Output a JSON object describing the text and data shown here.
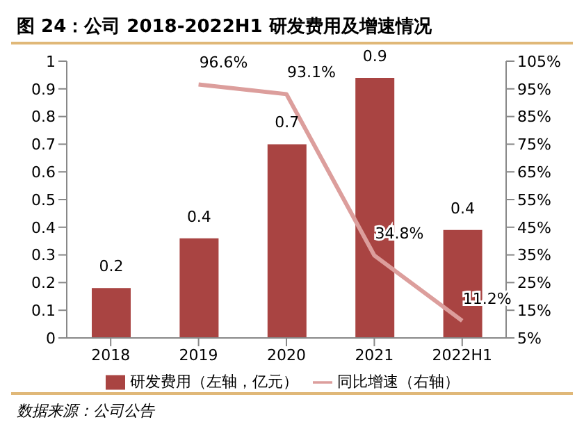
{
  "chart_data": {
    "type": "bar",
    "title": "图 24：公司 2018-2022H1 研发费用及增速情况",
    "categories": [
      "2018",
      "2019",
      "2020",
      "2021",
      "2022H1"
    ],
    "series": [
      {
        "name": "研发费用（左轴，亿元）",
        "color": "#a94442",
        "values": [
          0.18,
          0.36,
          0.7,
          0.94,
          0.39
        ],
        "value_labels": [
          "0.2",
          "0.4",
          "0.7",
          "0.9",
          "0.4"
        ]
      },
      {
        "name": "同比增速（右轴）",
        "type": "line",
        "axis": "y2",
        "color": "#dc9e9c",
        "values": [
          null,
          96.6,
          93.1,
          34.8,
          11.2
        ],
        "value_labels": [
          null,
          "96.6%",
          "93.1%",
          "34.8%",
          "11.2%"
        ]
      }
    ],
    "ylim": [
      0,
      1
    ],
    "yticks": [
      0,
      0.1,
      0.2,
      0.3,
      0.4,
      0.5,
      0.6,
      0.7,
      0.8,
      0.9,
      1
    ],
    "y2lim": [
      5,
      105
    ],
    "y2ticks": [
      {
        "value": 5,
        "label": "5%"
      },
      {
        "value": 15,
        "label": "15%"
      },
      {
        "value": 25,
        "label": "25%"
      },
      {
        "value": 35,
        "label": "35%"
      },
      {
        "value": 45,
        "label": "45%"
      },
      {
        "value": 55,
        "label": "55%"
      },
      {
        "value": 65,
        "label": "65%"
      },
      {
        "value": 75,
        "label": "75%"
      },
      {
        "value": 85,
        "label": "85%"
      },
      {
        "value": 95,
        "label": "95%"
      },
      {
        "value": 105,
        "label": "105%"
      }
    ],
    "legend": "bottom",
    "annotations": [
      "数据来源：公司公告"
    ]
  }
}
